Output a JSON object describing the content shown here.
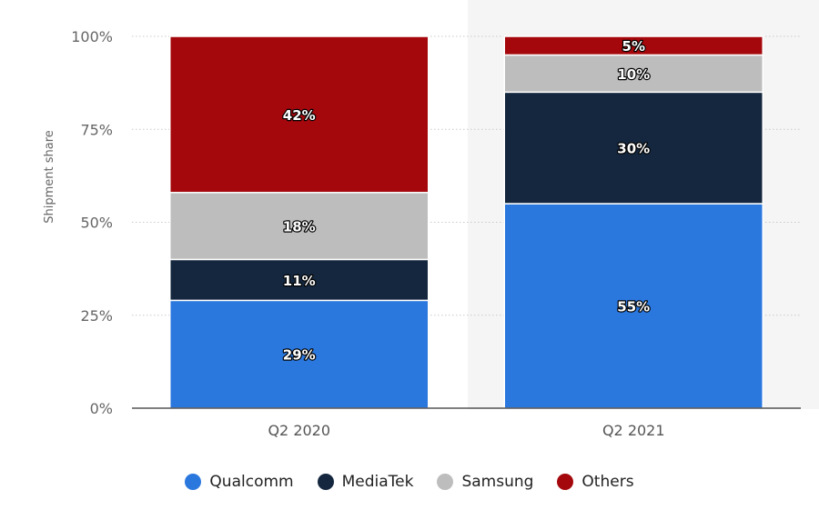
{
  "chart_data": {
    "type": "bar",
    "stacked": true,
    "categories": [
      "Q2 2020",
      "Q2 2021"
    ],
    "series": [
      {
        "name": "Qualcomm",
        "values": [
          29,
          55
        ],
        "labels": [
          "29%",
          "55%"
        ],
        "color": "#2a77de"
      },
      {
        "name": "MediaTek",
        "values": [
          11,
          30
        ],
        "labels": [
          "11%",
          "30%"
        ],
        "color": "#14273f"
      },
      {
        "name": "Samsung",
        "values": [
          18,
          10
        ],
        "labels": [
          "18%",
          "10%"
        ],
        "color": "#bdbdbd"
      },
      {
        "name": "Others",
        "values": [
          42,
          5
        ],
        "labels": [
          "42%",
          "5%"
        ],
        "color": "#a4080c"
      }
    ],
    "ylabel": "Shipment share",
    "ylim": [
      0,
      100
    ],
    "yticks": [
      0,
      25,
      50,
      75,
      100
    ],
    "ytick_labels": [
      "0%",
      "25%",
      "50%",
      "75%",
      "100%"
    ],
    "grid": true,
    "highlighted_category": "Q2 2021",
    "legend_position": "bottom"
  }
}
